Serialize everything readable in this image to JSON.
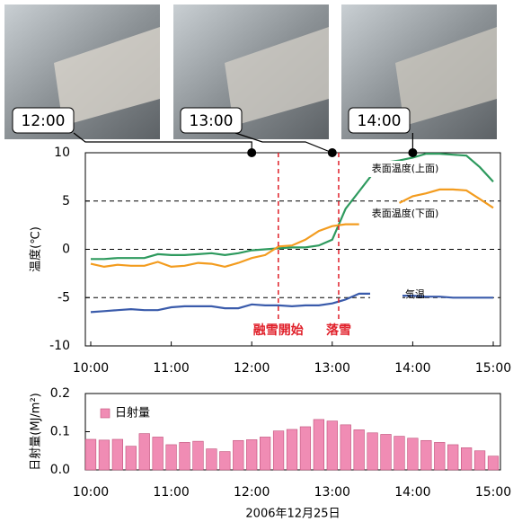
{
  "photos": [
    {
      "label": "12:00",
      "x": 12
    },
    {
      "label": "13:00",
      "x": 13
    },
    {
      "label": "14:00",
      "x": 14
    }
  ],
  "chart_data": [
    {
      "type": "line",
      "ylabel": "温度(℃)",
      "x": [
        10,
        10.1667,
        10.3333,
        10.5,
        10.6667,
        10.8333,
        11,
        11.1667,
        11.3333,
        11.5,
        11.6667,
        11.8333,
        12,
        12.1667,
        12.3333,
        12.5,
        12.6667,
        12.8333,
        13,
        13.1667,
        13.3333,
        13.5,
        13.6667,
        13.8333,
        14,
        14.1667,
        14.3333,
        14.5,
        14.6667,
        14.8333,
        15
      ],
      "series": [
        {
          "name": "表面温度(上面)",
          "color": "#2e9a5e",
          "values": [
            -1,
            -1,
            -0.9,
            -0.9,
            -0.9,
            -0.5,
            -0.6,
            -0.6,
            -0.5,
            -0.4,
            -0.6,
            -0.4,
            -0.1,
            0,
            0.1,
            0.2,
            0.2,
            0.4,
            1.0,
            4.2,
            6.0,
            7.8,
            9.0,
            9.2,
            9.5,
            9.9,
            9.9,
            9.8,
            9.7,
            8.5,
            7.0
          ]
        },
        {
          "name": "表面温度(下面)",
          "color": "#f39c1f",
          "values": [
            -1.5,
            -1.8,
            -1.6,
            -1.7,
            -1.7,
            -1.3,
            -1.8,
            -1.7,
            -1.4,
            -1.5,
            -1.8,
            -1.4,
            -0.9,
            -0.6,
            0.3,
            0.4,
            1.0,
            1.9,
            2.4,
            2.6,
            2.6,
            null,
            null,
            4.8,
            5.5,
            5.8,
            6.2,
            6.2,
            6.1,
            5.2,
            4.3
          ]
        },
        {
          "name": "気温",
          "color": "#3a5bab",
          "values": [
            -6.5,
            -6.4,
            -6.3,
            -6.2,
            -6.3,
            -6.3,
            -6.0,
            -5.9,
            -5.9,
            -5.9,
            -6.1,
            -6.1,
            -5.7,
            -5.8,
            -5.8,
            -5.9,
            -5.8,
            -5.8,
            -5.6,
            -5.2,
            -4.6,
            -4.6,
            -4.7,
            -4.8,
            -4.8,
            -4.9,
            -4.9,
            -5.0,
            -5.0,
            -5.0,
            -5.0
          ]
        }
      ],
      "xlim": [
        10,
        15
      ],
      "xticks": [
        {
          "value": 10,
          "label": "10:00"
        },
        {
          "value": 11,
          "label": "11:00"
        },
        {
          "value": 12,
          "label": "12:00"
        },
        {
          "value": 13,
          "label": "13:00"
        },
        {
          "value": 14,
          "label": "14:00"
        },
        {
          "value": 15,
          "label": "15:00"
        }
      ],
      "ylim": [
        -10,
        10
      ],
      "yticks": [
        10,
        5,
        0,
        -5,
        -10
      ],
      "grid": true,
      "annotations": [
        {
          "text": "融雪開始",
          "x": 12.33
        },
        {
          "text": "落雪",
          "x": 13.08
        }
      ]
    },
    {
      "type": "bar",
      "ylabel": "日射量(MJ/m²)",
      "xlabel": "2006年12月25日",
      "series": [
        {
          "name": "日射量",
          "color": "#f08cb4",
          "values": [
            0.08,
            0.078,
            0.08,
            0.062,
            0.095,
            0.086,
            0.066,
            0.072,
            0.075,
            0.055,
            0.048,
            0.077,
            0.079,
            0.086,
            0.102,
            0.106,
            0.113,
            0.132,
            0.128,
            0.118,
            0.105,
            0.097,
            0.093,
            0.088,
            0.083,
            0.077,
            0.072,
            0.066,
            0.058,
            0.05,
            0.036
          ]
        }
      ],
      "x": [
        10,
        10.1667,
        10.3333,
        10.5,
        10.6667,
        10.8333,
        11,
        11.1667,
        11.3333,
        11.5,
        11.6667,
        11.8333,
        12,
        12.1667,
        12.3333,
        12.5,
        12.6667,
        12.8333,
        13,
        13.1667,
        13.3333,
        13.5,
        13.6667,
        13.8333,
        14,
        14.1667,
        14.3333,
        14.5,
        14.6667,
        14.8333,
        15
      ],
      "xlim": [
        10,
        15
      ],
      "xticks": [
        {
          "value": 10,
          "label": "10:00"
        },
        {
          "value": 11,
          "label": "11:00"
        },
        {
          "value": 12,
          "label": "12:00"
        },
        {
          "value": 13,
          "label": "13:00"
        },
        {
          "value": 14,
          "label": "14:00"
        },
        {
          "value": 15,
          "label": "15:00"
        }
      ],
      "ylim": [
        0,
        0.2
      ],
      "yticks": [
        {
          "value": 0,
          "label": "0.0"
        },
        0.1,
        0.2
      ],
      "legend": "top-left"
    }
  ]
}
